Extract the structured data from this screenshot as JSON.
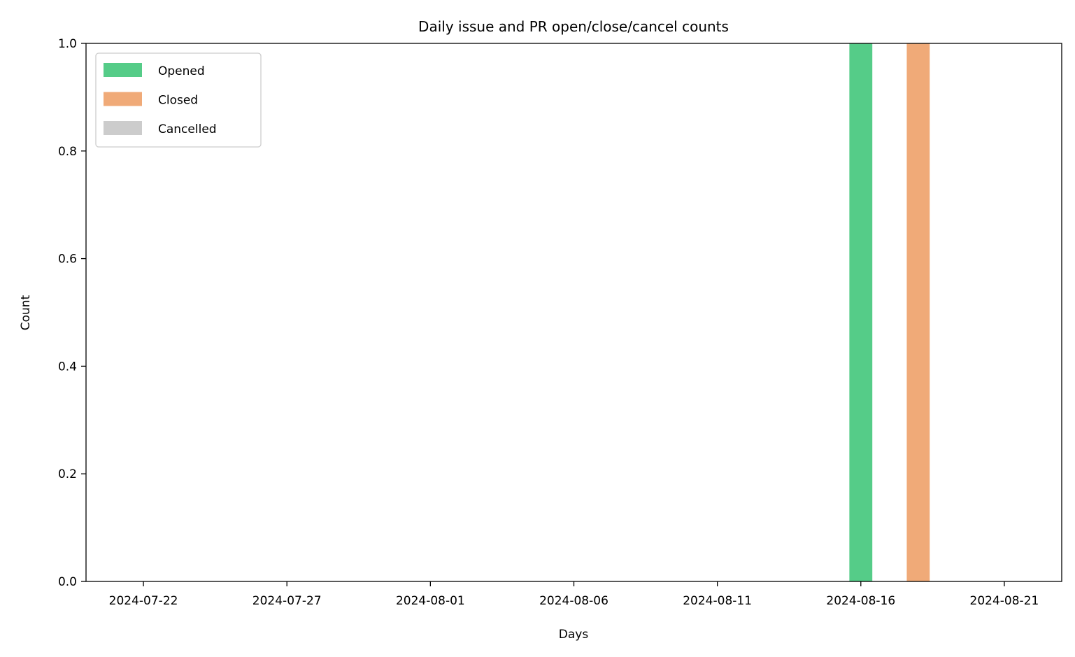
{
  "chart_data": {
    "type": "bar",
    "title": "Daily issue and PR open/close/cancel counts",
    "xlabel": "Days",
    "ylabel": "Count",
    "ylim": [
      0,
      1
    ],
    "xlim": [
      "2024-07-20",
      "2024-08-23"
    ],
    "x_ticks": [
      "2024-07-22",
      "2024-07-27",
      "2024-08-01",
      "2024-08-06",
      "2024-08-11",
      "2024-08-16",
      "2024-08-21"
    ],
    "y_ticks": [
      "0.0",
      "0.2",
      "0.4",
      "0.6",
      "0.8",
      "1.0"
    ],
    "legend_position": "top-left",
    "grid": false,
    "series": [
      {
        "name": "Opened",
        "color": "#55cc88",
        "points": [
          {
            "x": "2024-08-16",
            "value": 1
          }
        ]
      },
      {
        "name": "Closed",
        "color": "#f0aa78",
        "points": [
          {
            "x": "2024-08-18",
            "value": 1
          }
        ]
      },
      {
        "name": "Cancelled",
        "color": "#cccccc",
        "points": []
      }
    ]
  }
}
